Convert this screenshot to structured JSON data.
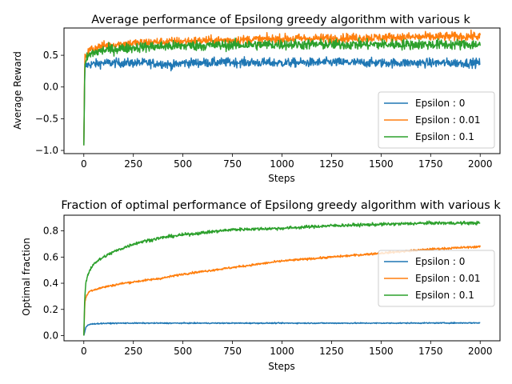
{
  "chart_data": [
    {
      "type": "line",
      "title": "Average performance of Epsilong greedy algorithm with various k",
      "xlabel": "Steps",
      "ylabel": "Average Reward",
      "xlim": [
        -100,
        2100
      ],
      "ylim": [
        -1.05,
        0.93
      ],
      "xticks": [
        0,
        250,
        500,
        750,
        1000,
        1250,
        1500,
        1750,
        2000
      ],
      "xtick_labels": [
        "0",
        "250",
        "500",
        "750",
        "1000",
        "1250",
        "1500",
        "1750",
        "2000"
      ],
      "yticks": [
        -1.0,
        -0.5,
        0.0,
        0.5
      ],
      "ytick_labels": [
        "−1.0",
        "−0.5",
        "0.0",
        "0.5"
      ],
      "grid": false,
      "legend_position": "lower-right",
      "series": [
        {
          "name": "Epsilon : 0",
          "color": "#1f77b4",
          "x": [
            0,
            5,
            10,
            20,
            40,
            75,
            100,
            200,
            300,
            400,
            450,
            500,
            750,
            1000,
            1250,
            1500,
            1750,
            2000
          ],
          "y": [
            -0.92,
            0.28,
            0.33,
            0.35,
            0.36,
            0.37,
            0.38,
            0.38,
            0.38,
            0.37,
            0.34,
            0.38,
            0.39,
            0.38,
            0.39,
            0.38,
            0.38,
            0.38
          ],
          "noise": 0.035
        },
        {
          "name": "Epsilon : 0.01",
          "color": "#ff7f0e",
          "x": [
            0,
            5,
            10,
            20,
            40,
            75,
            100,
            200,
            300,
            400,
            500,
            750,
            1000,
            1250,
            1500,
            1750,
            2000
          ],
          "y": [
            -0.92,
            0.45,
            0.5,
            0.55,
            0.6,
            0.63,
            0.65,
            0.68,
            0.7,
            0.71,
            0.72,
            0.74,
            0.76,
            0.77,
            0.78,
            0.79,
            0.8
          ],
          "noise": 0.035
        },
        {
          "name": "Epsilon : 0.1",
          "color": "#2ca02c",
          "x": [
            0,
            5,
            10,
            20,
            40,
            75,
            100,
            200,
            300,
            400,
            500,
            750,
            1000,
            1250,
            1500,
            1750,
            2000
          ],
          "y": [
            -0.92,
            0.3,
            0.4,
            0.48,
            0.53,
            0.56,
            0.58,
            0.61,
            0.63,
            0.64,
            0.65,
            0.66,
            0.67,
            0.67,
            0.67,
            0.67,
            0.67
          ],
          "noise": 0.04
        }
      ]
    },
    {
      "type": "line",
      "title": "Fraction of optimal performance of Epsilong greedy algorithm with various k",
      "xlabel": "Steps",
      "ylabel": "Optimal fraction",
      "xlim": [
        -100,
        2100
      ],
      "ylim": [
        -0.04,
        0.92
      ],
      "xticks": [
        0,
        250,
        500,
        750,
        1000,
        1250,
        1500,
        1750,
        2000
      ],
      "xtick_labels": [
        "0",
        "250",
        "500",
        "750",
        "1000",
        "1250",
        "1500",
        "1750",
        "2000"
      ],
      "yticks": [
        0.0,
        0.2,
        0.4,
        0.6,
        0.8
      ],
      "ytick_labels": [
        "0.0",
        "0.2",
        "0.4",
        "0.6",
        "0.8"
      ],
      "grid": false,
      "legend_position": "center-right",
      "series": [
        {
          "name": "Epsilon : 0",
          "color": "#1f77b4",
          "x": [
            0,
            10,
            20,
            30,
            50,
            100,
            200,
            300,
            500,
            1000,
            1500,
            2000
          ],
          "y": [
            0.0,
            0.06,
            0.08,
            0.085,
            0.09,
            0.093,
            0.095,
            0.095,
            0.095,
            0.095,
            0.095,
            0.097
          ],
          "noise": 0.002
        },
        {
          "name": "Epsilon : 0.01",
          "color": "#ff7f0e",
          "x": [
            0,
            5,
            10,
            20,
            30,
            50,
            100,
            200,
            300,
            400,
            500,
            750,
            1000,
            1250,
            1500,
            1750,
            2000
          ],
          "y": [
            0.0,
            0.25,
            0.29,
            0.32,
            0.34,
            0.35,
            0.37,
            0.4,
            0.42,
            0.44,
            0.47,
            0.52,
            0.57,
            0.6,
            0.63,
            0.66,
            0.68
          ],
          "noise": 0.004
        },
        {
          "name": "Epsilon : 0.1",
          "color": "#2ca02c",
          "x": [
            0,
            5,
            10,
            20,
            30,
            50,
            100,
            150,
            200,
            250,
            300,
            400,
            500,
            750,
            1000,
            1250,
            1500,
            1750,
            2000
          ],
          "y": [
            0.0,
            0.3,
            0.4,
            0.46,
            0.5,
            0.55,
            0.6,
            0.64,
            0.67,
            0.7,
            0.72,
            0.75,
            0.77,
            0.81,
            0.82,
            0.84,
            0.85,
            0.86,
            0.86
          ],
          "noise": 0.006
        }
      ]
    }
  ]
}
